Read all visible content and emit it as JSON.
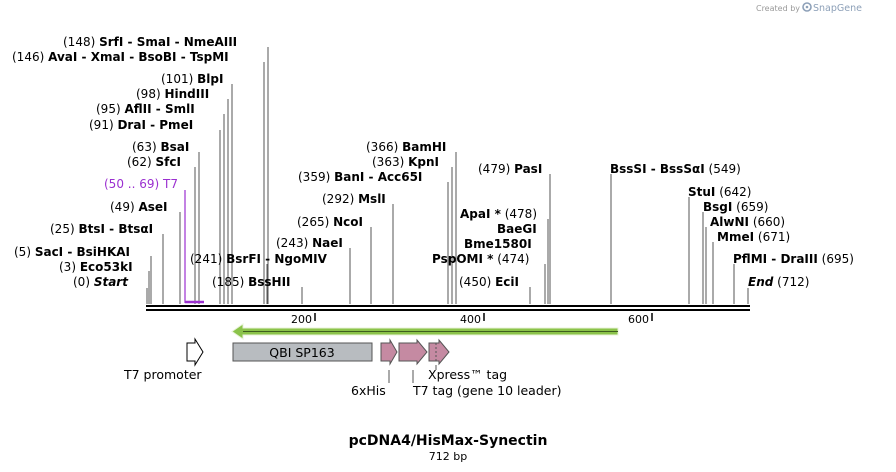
{
  "credit": {
    "prefix": "Created by",
    "brand": "SnapGene"
  },
  "plasmid": {
    "name": "pcDNA4/HisMax-Synectin",
    "length_label": "712 bp"
  },
  "colors": {
    "tick": "#555555",
    "primer": "#9b30d0",
    "orf": "#8bc34a",
    "feature_gray": "#b8bcc0",
    "feature_mauve": "#c58aa2",
    "promoter": "#ffffff"
  },
  "ruler": [
    "200",
    "400",
    "600"
  ],
  "sites": [
    {
      "id": "srfi",
      "pos": "(148)",
      "names": [
        [
          "SrfI",
          ""
        ],
        [
          "SmaI",
          " - "
        ],
        [
          "NmeAIII",
          " - "
        ]
      ]
    },
    {
      "id": "avai",
      "pos": "(146)",
      "names": [
        [
          "AvaI",
          ""
        ],
        [
          "XmaI",
          " - "
        ],
        [
          "BsoBI",
          " - "
        ],
        [
          "TspMI",
          " - "
        ]
      ]
    },
    {
      "id": "blpi",
      "pos": "(101)",
      "names": [
        [
          "BlpI",
          ""
        ]
      ]
    },
    {
      "id": "hindiii",
      "pos": "(98)",
      "names": [
        [
          "HindIII",
          ""
        ]
      ]
    },
    {
      "id": "aflii",
      "pos": "(95)",
      "names": [
        [
          "AflII",
          ""
        ],
        [
          "SmlI",
          " - "
        ]
      ]
    },
    {
      "id": "drai",
      "pos": "(91)",
      "names": [
        [
          "DraI",
          ""
        ],
        [
          "PmeI",
          " - "
        ]
      ]
    },
    {
      "id": "bsai",
      "pos": "(63)",
      "names": [
        [
          "BsaI",
          ""
        ]
      ]
    },
    {
      "id": "sfci",
      "pos": "(62)",
      "names": [
        [
          "SfcI",
          ""
        ]
      ]
    },
    {
      "id": "asei",
      "pos": "(49)",
      "names": [
        [
          "AseI",
          ""
        ]
      ]
    },
    {
      "id": "btsi",
      "pos": "(25)",
      "names": [
        [
          "BtsI",
          ""
        ],
        [
          "BtsαI",
          " - "
        ]
      ]
    },
    {
      "id": "saci",
      "pos": "(5)",
      "names": [
        [
          "SacI",
          ""
        ],
        [
          "BsiHKAI",
          " - "
        ]
      ]
    },
    {
      "id": "eco53ki",
      "pos": "(3)",
      "names": [
        [
          "Eco53kI",
          ""
        ]
      ]
    },
    {
      "id": "start",
      "pos": "(0)",
      "names": [
        [
          "Start",
          ""
        ]
      ]
    },
    {
      "id": "bsrfi",
      "pos": "(241)",
      "names": [
        [
          "BsrFI",
          ""
        ],
        [
          "NgoMIV",
          " - "
        ]
      ]
    },
    {
      "id": "bsshii",
      "pos": "(185)",
      "names": [
        [
          "BssHII",
          ""
        ]
      ]
    },
    {
      "id": "naei",
      "pos": "(243)",
      "names": [
        [
          "NaeI",
          ""
        ]
      ]
    },
    {
      "id": "ncoi",
      "pos": "(265)",
      "names": [
        [
          "NcoI",
          ""
        ]
      ]
    },
    {
      "id": "msli",
      "pos": "(292)",
      "names": [
        [
          "MslI",
          ""
        ]
      ]
    },
    {
      "id": "bamhi",
      "pos": "(366)",
      "names": [
        [
          "BamHI",
          ""
        ]
      ]
    },
    {
      "id": "kpni",
      "pos": "(363)",
      "names": [
        [
          "KpnI",
          ""
        ]
      ]
    },
    {
      "id": "bani",
      "pos": "(359)",
      "names": [
        [
          "BanI",
          ""
        ],
        [
          "Acc65I",
          " - "
        ]
      ]
    },
    {
      "id": "pasi",
      "pos": "(479)",
      "names": [
        [
          "PasI",
          ""
        ]
      ]
    },
    {
      "id": "apai",
      "pos": "(478)",
      "names": [
        [
          "ApaI *",
          ""
        ]
      ]
    },
    {
      "id": "baegi",
      "pos": "",
      "names": [
        [
          "BaeGI",
          ""
        ]
      ]
    },
    {
      "id": "bme1580i",
      "pos": "",
      "names": [
        [
          "Bme1580I",
          ""
        ]
      ]
    },
    {
      "id": "pspomi",
      "pos": "(474)",
      "names": [
        [
          "PspOMI *",
          ""
        ]
      ]
    },
    {
      "id": "ecii",
      "pos": "(450)",
      "names": [
        [
          "EciI",
          ""
        ]
      ]
    },
    {
      "id": "bsssi",
      "pos": "(549)",
      "names": [
        [
          "BssSI",
          ""
        ],
        [
          "BssSαI",
          " - "
        ]
      ]
    },
    {
      "id": "stui",
      "pos": "(642)",
      "names": [
        [
          "StuI",
          ""
        ]
      ]
    },
    {
      "id": "bsgi",
      "pos": "(659)",
      "names": [
        [
          "BsgI",
          ""
        ]
      ]
    },
    {
      "id": "alwni",
      "pos": "(660)",
      "names": [
        [
          "AlwNI",
          ""
        ]
      ]
    },
    {
      "id": "mmei",
      "pos": "(671)",
      "names": [
        [
          "MmeI",
          ""
        ]
      ]
    },
    {
      "id": "pflmi",
      "pos": "(695)",
      "names": [
        [
          "PflMI",
          ""
        ],
        [
          "DraIII",
          " - "
        ]
      ]
    },
    {
      "id": "end",
      "pos": "(712)",
      "names": [
        [
          "End",
          ""
        ]
      ]
    }
  ],
  "primer": {
    "range": "(50 .. 69)",
    "name": "T7"
  },
  "features": {
    "t7_promoter": "T7 promoter",
    "qbi": "QBI SP163",
    "his": "6xHis",
    "xpress": "Xpress™ tag",
    "t7tag": "T7 tag (gene 10 leader)"
  }
}
